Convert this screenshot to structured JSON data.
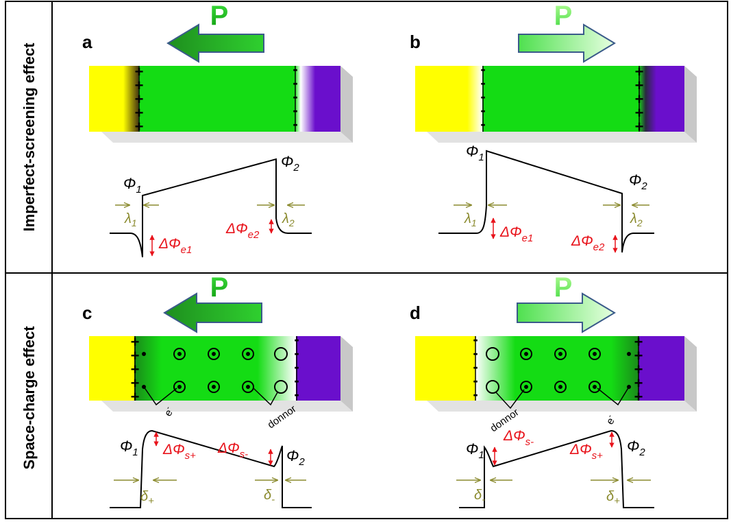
{
  "rows": [
    {
      "label": "Imperfect-screening effect"
    },
    {
      "label": "Space-charge effect"
    }
  ],
  "panels": [
    {
      "letter": "a",
      "p_label": "P",
      "arrow": "left",
      "phi1": "Φ",
      "phi1_sub": "1",
      "phi2": "Φ",
      "phi2_sub": "2",
      "lambda1": "λ",
      "lambda1_sub": "1",
      "lambda2": "λ",
      "lambda2_sub": "2",
      "dphi_a": "ΔΦ",
      "dphi_a_sub": "e1",
      "dphi_b": "ΔΦ",
      "dphi_b_sub": "e2"
    },
    {
      "letter": "b",
      "p_label": "P",
      "arrow": "right",
      "phi1": "Φ",
      "phi1_sub": "1",
      "phi2": "Φ",
      "phi2_sub": "2",
      "lambda1": "λ",
      "lambda1_sub": "1",
      "lambda2": "λ",
      "lambda2_sub": "2",
      "dphi_a": "ΔΦ",
      "dphi_a_sub": "e1",
      "dphi_b": "ΔΦ",
      "dphi_b_sub": "e2"
    },
    {
      "letter": "c",
      "p_label": "P",
      "arrow": "left",
      "phi1": "Φ",
      "phi1_sub": "1",
      "phi2": "Φ",
      "phi2_sub": "2",
      "delta1": "δ",
      "delta1_sub": "+",
      "delta2": "δ",
      "delta2_sub": "-",
      "dphi_a": "ΔΦ",
      "dphi_a_sub": "s+",
      "dphi_b": "ΔΦ",
      "dphi_b_sub": "s-",
      "electron": "e",
      "electron_sup": "-",
      "donor": "donnor"
    },
    {
      "letter": "d",
      "p_label": "P",
      "arrow": "right",
      "phi1": "Φ",
      "phi1_sub": "1",
      "phi2": "Φ",
      "phi2_sub": "2",
      "delta1": "δ",
      "delta1_sub": "-",
      "delta2": "δ",
      "delta2_sub": "+",
      "dphi_a": "ΔΦ",
      "dphi_a_sub": "s-",
      "dphi_b": "ΔΦ",
      "dphi_b_sub": "s+",
      "electron": "e",
      "electron_sup": "-",
      "donor": "donnor"
    }
  ],
  "colors": {
    "ferroelectric": "#14dc14",
    "electrode_left": "#ffff00",
    "electrode_right": "#6a0fcc",
    "arrow_dark": "#1a9a1a",
    "arrow_light": "#8cf07a",
    "arrow_border": "#3a5a8a",
    "annotation_red": "#e8131b",
    "annotation_olive": "#8a8a2e"
  }
}
